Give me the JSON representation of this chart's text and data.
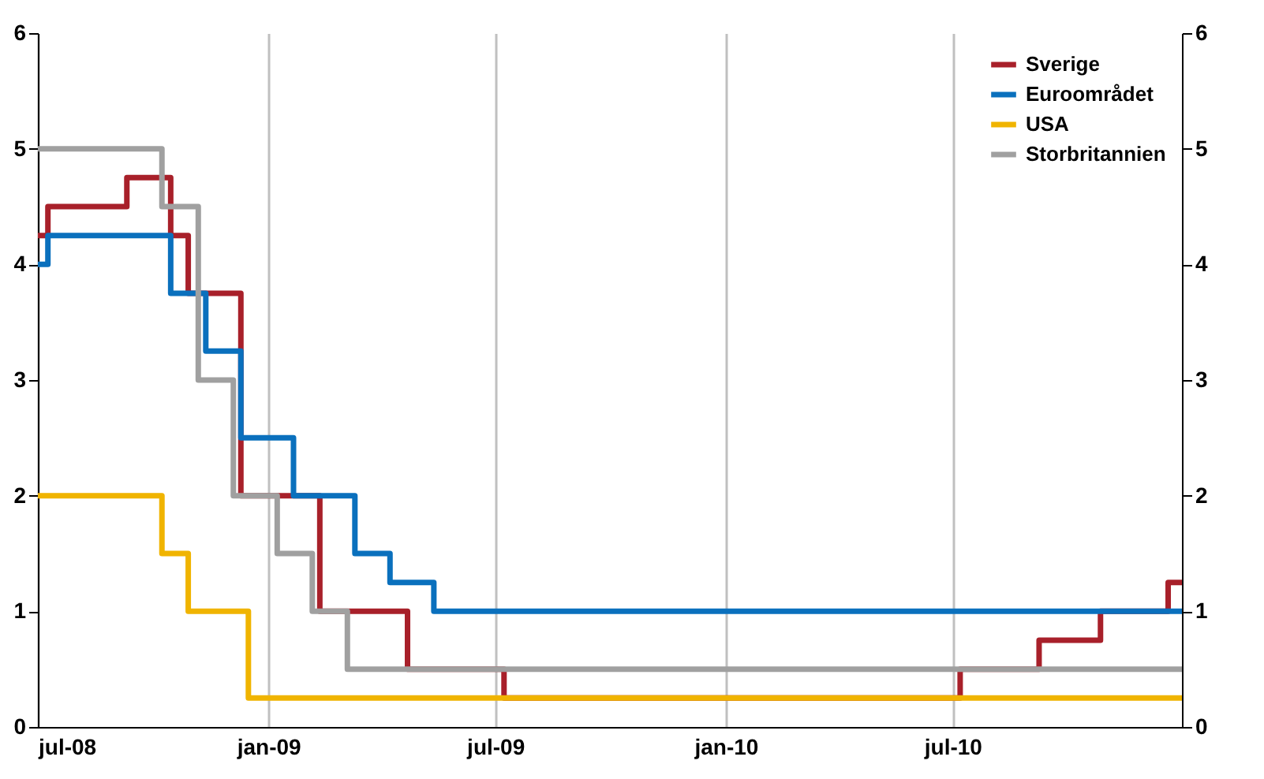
{
  "chart_data": {
    "type": "step",
    "xlim": [
      "2008-07-01",
      "2010-12-31"
    ],
    "xticks": [
      {
        "value": "2008-07-01",
        "label": "jul-08"
      },
      {
        "value": "2009-01-01",
        "label": "jan-09"
      },
      {
        "value": "2009-07-01",
        "label": "jul-09"
      },
      {
        "value": "2010-01-01",
        "label": "jan-10"
      },
      {
        "value": "2010-07-01",
        "label": "jul-10"
      }
    ],
    "ylim": [
      0,
      6
    ],
    "yticks": [
      0,
      1,
      2,
      3,
      4,
      5,
      6
    ],
    "y2lim": [
      0,
      6
    ],
    "y2ticks": [
      0,
      1,
      2,
      3,
      4,
      5,
      6
    ],
    "grid": "x",
    "legend": "top right",
    "line_style": "solid",
    "series": [
      {
        "name": "Sverige",
        "color": "#a8202a",
        "x": [
          "2008-07-01",
          "2008-07-09",
          "2008-09-10",
          "2008-10-15",
          "2008-10-29",
          "2008-12-10",
          "2009-02-11",
          "2009-04-22",
          "2009-07-08",
          "2010-07-07",
          "2010-09-08",
          "2010-10-27",
          "2010-12-20",
          "2010-12-31"
        ],
        "values": [
          4.25,
          4.5,
          4.75,
          4.25,
          3.75,
          2.0,
          1.0,
          0.5,
          0.25,
          0.5,
          0.75,
          1.0,
          1.25,
          1.25
        ]
      },
      {
        "name": "Euroområdet",
        "color": "#0a70bd",
        "x": [
          "2008-07-01",
          "2008-07-09",
          "2008-10-15",
          "2008-11-12",
          "2008-12-10",
          "2009-01-21",
          "2009-03-11",
          "2009-04-08",
          "2009-05-13",
          "2010-12-31"
        ],
        "values": [
          4.0,
          4.25,
          3.75,
          3.25,
          2.5,
          2.0,
          1.5,
          1.25,
          1.0,
          1.0
        ]
      },
      {
        "name": "USA",
        "color": "#f0b400",
        "x": [
          "2008-07-01",
          "2008-10-08",
          "2008-10-29",
          "2008-12-16",
          "2010-12-31"
        ],
        "values": [
          2.0,
          1.5,
          1.0,
          0.25,
          0.25
        ]
      },
      {
        "name": "Storbritannien",
        "color": "#a0a0a0",
        "x": [
          "2008-07-01",
          "2008-10-08",
          "2008-11-06",
          "2008-12-04",
          "2009-01-08",
          "2009-02-05",
          "2009-03-05",
          "2010-12-31"
        ],
        "values": [
          5.0,
          4.5,
          3.0,
          2.0,
          1.5,
          1.0,
          0.5,
          0.5
        ]
      }
    ]
  }
}
